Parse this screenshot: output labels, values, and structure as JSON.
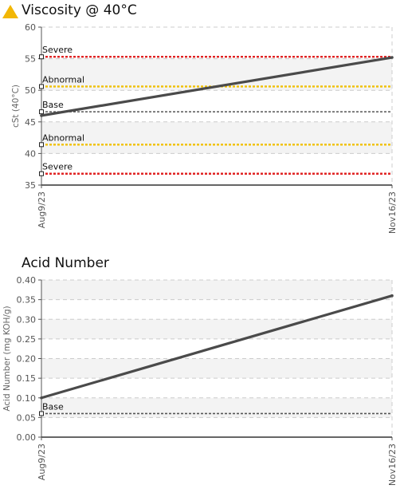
{
  "colors": {
    "warning": "#f2b705",
    "severe": "#e02424",
    "abnormal": "#f0c000",
    "base": "#555555",
    "series": "#4a4a4a",
    "grid": "#cccccc",
    "band": "#f3f3f3"
  },
  "icons": {
    "status": "warning-triangle-icon"
  },
  "chart_data": [
    {
      "type": "line",
      "title": "Viscosity @ 40°C",
      "ylabel": "cSt (40°C)",
      "xlabel": "",
      "x": [
        "Aug9/23",
        "Nov16/23"
      ],
      "series": [
        {
          "values": [
            46.0,
            55.2
          ]
        }
      ],
      "ylim": [
        35,
        60
      ],
      "yticks": [
        "35",
        "40",
        "45",
        "50",
        "55",
        "60"
      ],
      "grid": true,
      "thresholds": [
        {
          "label": "Severe",
          "value": 55.3,
          "kind": "severe"
        },
        {
          "label": "Abnormal",
          "value": 50.6,
          "kind": "abnormal"
        },
        {
          "label": "Base",
          "value": 46.6,
          "kind": "base"
        },
        {
          "label": "Abnormal",
          "value": 41.4,
          "kind": "abnormal"
        },
        {
          "label": "Severe",
          "value": 36.8,
          "kind": "severe"
        }
      ]
    },
    {
      "type": "line",
      "title": "Acid Number",
      "ylabel": "Acid Number (mg KOH/g)",
      "xlabel": "",
      "x": [
        "Aug9/23",
        "Nov16/23"
      ],
      "series": [
        {
          "values": [
            0.1,
            0.36
          ]
        }
      ],
      "ylim": [
        0,
        0.4
      ],
      "yticks": [
        "0.00",
        "0.05",
        "0.10",
        "0.15",
        "0.20",
        "0.25",
        "0.30",
        "0.35",
        "0.40"
      ],
      "grid": true,
      "thresholds": [
        {
          "label": "Base",
          "value": 0.06,
          "kind": "base"
        }
      ]
    }
  ]
}
